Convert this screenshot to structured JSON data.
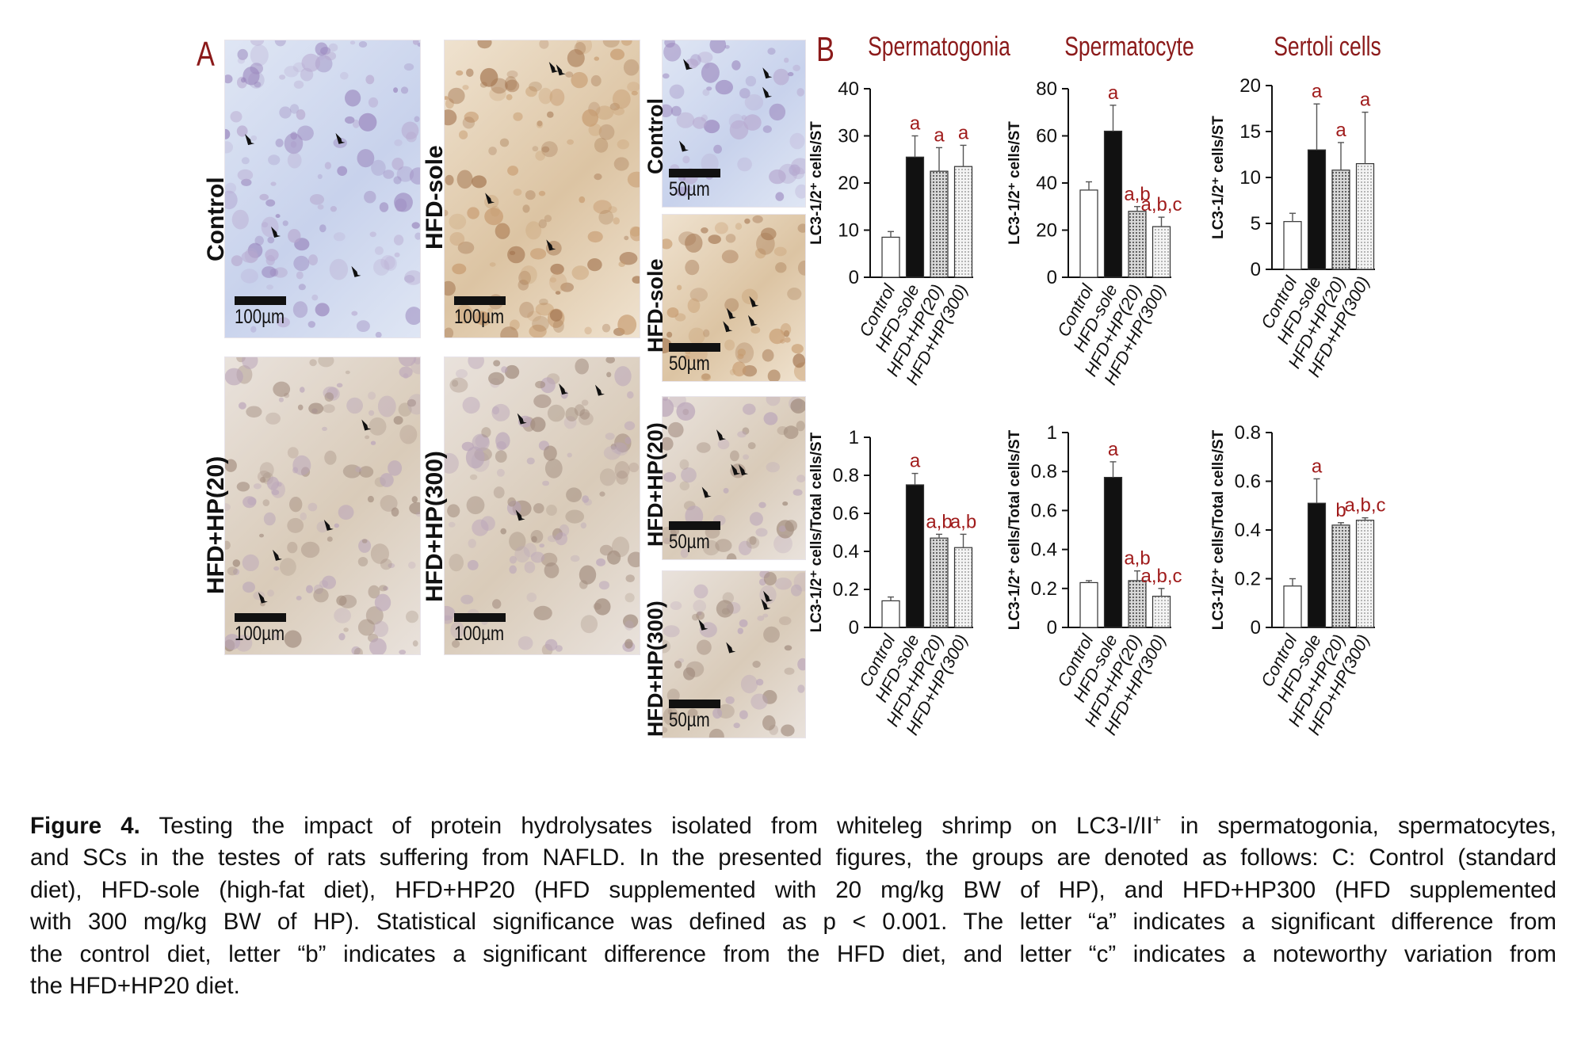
{
  "panel_a_label": "A",
  "panel_b_label": "B",
  "micrographs": [
    {
      "label": "Control",
      "scale": "100µm",
      "tone": "blue"
    },
    {
      "label": "HFD-sole",
      "scale": "100µm",
      "tone": "brown"
    },
    {
      "label": "HFD+HP(20)",
      "scale": "100µm",
      "tone": "mixed"
    },
    {
      "label": "HFD+HP(300)",
      "scale": "100µm",
      "tone": "mixed"
    },
    {
      "label": "Control",
      "scale": "50µm",
      "tone": "blue"
    },
    {
      "label": "HFD-sole",
      "scale": "50µm",
      "tone": "brown"
    },
    {
      "label": "HFD+HP(20)",
      "scale": "50µm",
      "tone": "mixed"
    },
    {
      "label": "HFD+HP(300)",
      "scale": "50µm",
      "tone": "mixed"
    }
  ],
  "chart_data": [
    {
      "type": "bar",
      "title": "Spermatogonia",
      "ylabel": "LC3-1/2⁺ cells/ST",
      "ylim": [
        0,
        40
      ],
      "yticks": [
        "0",
        "10",
        "20",
        "30",
        "40"
      ],
      "categories": [
        "Control",
        "HFD-sole",
        "HFD+HP(20)",
        "HFD+HP(300)"
      ],
      "values": [
        8.5,
        25.5,
        22.5,
        23.5
      ],
      "errors": [
        1.2,
        4.5,
        5,
        4.5
      ],
      "sig": [
        "",
        "a",
        "a",
        "a"
      ]
    },
    {
      "type": "bar",
      "title": "Spermatocyte",
      "ylabel": "LC3-1/2⁺ cells/ST",
      "ylim": [
        0,
        80
      ],
      "yticks": [
        "0",
        "20",
        "40",
        "60",
        "80"
      ],
      "categories": [
        "Control",
        "HFD-sole",
        "HFD+HP(20)",
        "HFD+HP(300)"
      ],
      "values": [
        37,
        62,
        28,
        21.5
      ],
      "errors": [
        3.5,
        11,
        2,
        4
      ],
      "sig": [
        "",
        "a",
        "a,b",
        "a,b,c"
      ]
    },
    {
      "type": "bar",
      "title": "Sertoli cells",
      "ylabel": "LC3-1/2⁺ cells/ST",
      "ylim": [
        0,
        20
      ],
      "yticks": [
        "0",
        "5",
        "10",
        "15",
        "20"
      ],
      "categories": [
        "Control",
        "HFD-sole",
        "HFD+HP(20)",
        "HFD+HP(300)"
      ],
      "values": [
        5.2,
        13,
        10.8,
        11.5
      ],
      "errors": [
        0.9,
        5,
        3,
        5.6
      ],
      "sig": [
        "",
        "a",
        "a",
        "a"
      ]
    },
    {
      "type": "bar",
      "title": "",
      "ylabel": "LC3-1/2⁺ cells/Total cells/ST",
      "ylim": [
        0,
        1
      ],
      "yticks": [
        "0",
        "0.2",
        "0.4",
        "0.6",
        "0.8",
        "1"
      ],
      "categories": [
        "Control",
        "HFD-sole",
        "HFD+HP(20)",
        "HFD+HP(300)"
      ],
      "values": [
        0.14,
        0.75,
        0.47,
        0.42
      ],
      "errors": [
        0.02,
        0.06,
        0.02,
        0.07
      ],
      "sig": [
        "",
        "a",
        "a,b",
        "a,b"
      ]
    },
    {
      "type": "bar",
      "title": "",
      "ylabel": "LC3-1/2⁺ cells/Total cells/ST",
      "ylim": [
        0,
        1
      ],
      "yticks": [
        "0",
        "0.2",
        "0.4",
        "0.6",
        "0.8",
        "1"
      ],
      "categories": [
        "Control",
        "HFD-sole",
        "HFD+HP(20)",
        "HFD+HP(300)"
      ],
      "values": [
        0.23,
        0.77,
        0.24,
        0.16
      ],
      "errors": [
        0.01,
        0.08,
        0.05,
        0.04
      ],
      "sig": [
        "",
        "a",
        "a,b",
        "a,b,c"
      ]
    },
    {
      "type": "bar",
      "title": "",
      "ylabel": "LC3-1/2⁺ cells/Total cells/ST",
      "ylim": [
        0,
        0.8
      ],
      "yticks": [
        "0",
        "0.2",
        "0.4",
        "0.6",
        "0.8"
      ],
      "categories": [
        "Control",
        "HFD-sole",
        "HFD+HP(20)",
        "HFD+HP(300)"
      ],
      "values": [
        0.17,
        0.51,
        0.42,
        0.44
      ],
      "errors": [
        0.03,
        0.1,
        0.01,
        0.01
      ],
      "sig": [
        "",
        "a",
        "b",
        "a,b,c"
      ]
    }
  ],
  "caption": {
    "label": "Figure 4.",
    "lines": [
      " Testing the impact of protein hydrolysates isolated from whiteleg shrimp on LC3-I/II",
      " in spermatogonia, spermatocytes,",
      "and SCs in the testes of rats suffering from NAFLD. In the presented figures, the groups are denoted as follows: C: Control (standard",
      "diet), HFD-sole (high-fat diet), HFD+HP20 (HFD supplemented with 20 mg/kg BW of HP), and HFD+HP300 (HFD supplemented",
      "with 300 mg/kg BW of HP). Statistical significance was defined as p < 0.001. The letter “a” indicates a significant difference from",
      "the control diet, letter “b” indicates a significant difference from the HFD diet, and letter “c” indicates a noteworthy variation from",
      "the HFD+HP20 diet."
    ],
    "superscript": "+"
  },
  "colors": {
    "title_red": "#8b1a1a",
    "sig_red": "#a01c1c",
    "bar_black": "#111111",
    "stain_blue": "#b9c6e4",
    "stain_brown": "#c9a27a"
  }
}
